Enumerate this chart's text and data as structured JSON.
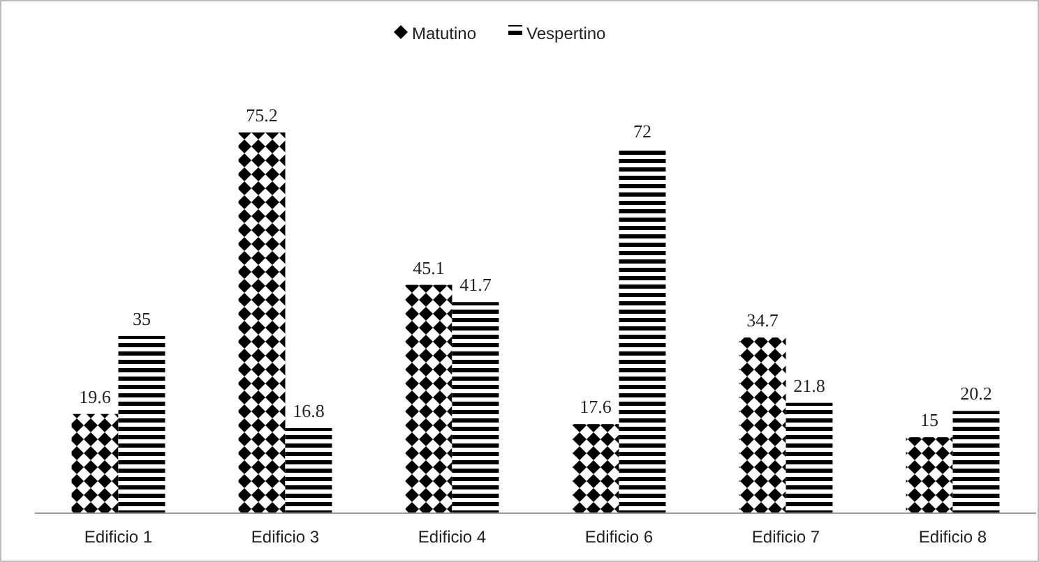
{
  "chart_data": {
    "type": "bar",
    "categories": [
      "Edificio 1",
      "Edificio 3",
      "Edificio 4",
      "Edificio 6",
      "Edificio 7",
      "Edificio 8"
    ],
    "series": [
      {
        "name": "Matutino",
        "color": "#000000",
        "values": [
          19.6,
          75.2,
          45.1,
          17.6,
          34.7,
          15
        ]
      },
      {
        "name": "Vespertino",
        "color": "#000000",
        "values": [
          35,
          16.8,
          41.7,
          72,
          21.8,
          20.2
        ]
      }
    ],
    "data_labels": true,
    "legend": "top"
  }
}
